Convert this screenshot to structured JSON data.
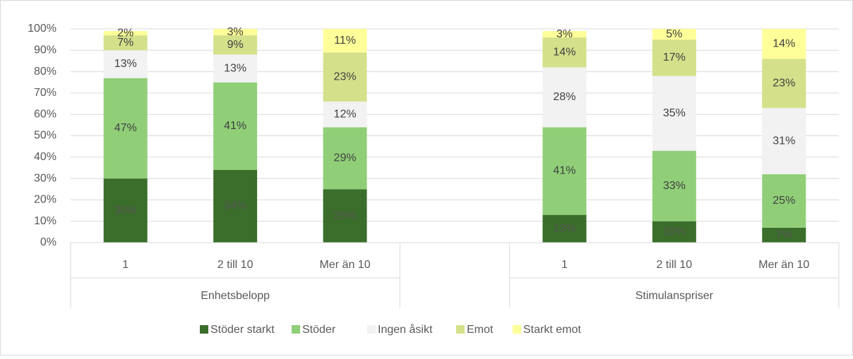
{
  "chart_data": {
    "type": "bar",
    "stacked": true,
    "categories": [
      "1",
      "2 till 10",
      "Mer än 10",
      null,
      "1",
      "2 till 10",
      "Mer än 10"
    ],
    "group_labels": [
      "Enhetsbelopp",
      "Stimulanspriser"
    ],
    "ylim": [
      0,
      100
    ],
    "yticks": [
      {
        "value": 0,
        "label": "0%"
      },
      {
        "value": 10,
        "label": "10%"
      },
      {
        "value": 20,
        "label": "20%"
      },
      {
        "value": 30,
        "label": "30%"
      },
      {
        "value": 40,
        "label": "40%"
      },
      {
        "value": 50,
        "label": "50%"
      },
      {
        "value": 60,
        "label": "60%"
      },
      {
        "value": 70,
        "label": "70%"
      },
      {
        "value": 80,
        "label": "80%"
      },
      {
        "value": 90,
        "label": "90%"
      },
      {
        "value": 100,
        "label": "100%"
      }
    ],
    "grid": true,
    "legend": "bottom",
    "series": [
      {
        "name": "Stöder starkt",
        "color": "#3b6e2b",
        "values": [
          30,
          34,
          25,
          null,
          13,
          10,
          7
        ],
        "value_labels": [
          "30%",
          "34%",
          "25%",
          null,
          "13%",
          "10%",
          "7%"
        ]
      },
      {
        "name": "Stöder",
        "color": "#90cf78",
        "values": [
          47,
          41,
          29,
          null,
          41,
          33,
          25
        ],
        "value_labels": [
          "47%",
          "41%",
          "29%",
          null,
          "41%",
          "33%",
          "25%"
        ]
      },
      {
        "name": "Ingen åsikt",
        "color": "#f2f2f2",
        "values": [
          13,
          13,
          12,
          null,
          28,
          35,
          31
        ],
        "value_labels": [
          "13%",
          "13%",
          "12%",
          null,
          "28%",
          "35%",
          "31%"
        ]
      },
      {
        "name": "Emot",
        "color": "#d5e08b",
        "values": [
          7,
          9,
          23,
          null,
          14,
          17,
          23
        ],
        "value_labels": [
          "7%",
          "9%",
          "23%",
          null,
          "14%",
          "17%",
          "23%"
        ]
      },
      {
        "name": "Starkt emot",
        "color": "#ffff99",
        "values": [
          2,
          3,
          11,
          null,
          3,
          5,
          14
        ],
        "value_labels": [
          "2%",
          "3%",
          "11%",
          null,
          "3%",
          "5%",
          "14%"
        ]
      }
    ]
  }
}
